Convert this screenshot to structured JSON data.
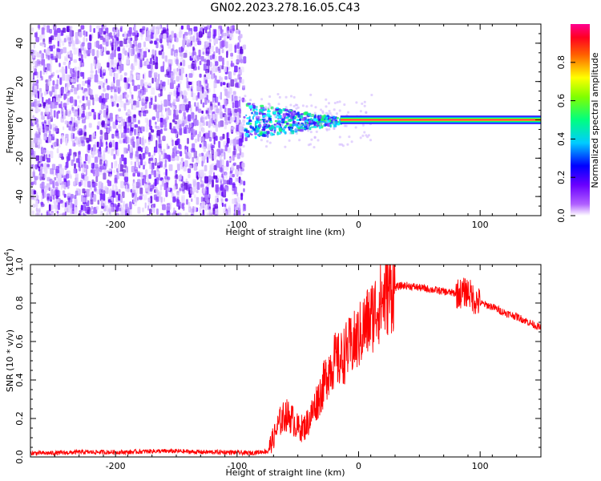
{
  "title": "GN02.2023.278.16.05.C43",
  "chart_data": [
    {
      "type": "heatmap",
      "xlabel": "Height of straight line (km)",
      "ylabel": "Frequency (Hz)",
      "xlim": [
        -270,
        150
      ],
      "ylim": [
        -50,
        50
      ],
      "x_ticks": [
        -200,
        -100,
        0,
        100
      ],
      "y_ticks": [
        -40,
        -20,
        0,
        20,
        40
      ],
      "colorbar": {
        "label": "Normalized spectral amplitude",
        "range": [
          0,
          1
        ],
        "ticks": [
          0.0,
          0.2,
          0.4,
          0.6,
          0.8
        ],
        "colormap": [
          "#ffffff",
          "#7a00ff",
          "#0000ff",
          "#00ffff",
          "#00ff00",
          "#ffff00",
          "#ff0000",
          "#ff0080"
        ]
      },
      "regions": [
        {
          "x_range": [
            -270,
            -95
          ],
          "freq_range": [
            -50,
            50
          ],
          "amplitude": [
            0.0,
            0.25
          ],
          "description_color": "#7a00ff"
        },
        {
          "x_range": [
            -95,
            -15
          ],
          "freq_range": [
            -8,
            8
          ],
          "amplitude": [
            0.2,
            0.6
          ]
        },
        {
          "x_range": [
            -15,
            150
          ],
          "freq_range": [
            -1,
            1
          ],
          "amplitude": [
            0.9,
            1.0
          ]
        }
      ]
    },
    {
      "type": "line",
      "xlabel": "Height of straight line (km)",
      "ylabel": "SNR (10 * v/v)",
      "y_multiplier": "(x10",
      "y_multiplier_exp": "4",
      "y_multiplier_close": ")",
      "xlim": [
        -270,
        150
      ],
      "ylim": [
        0.0,
        1.0
      ],
      "x_ticks": [
        -200,
        -100,
        0,
        100
      ],
      "y_ticks": [
        0.0,
        0.2,
        0.4,
        0.6,
        0.8,
        1.0
      ],
      "y_tick_labels": [
        "0.0",
        "0.2",
        "0.4",
        "0.6",
        "0.8",
        "1.0"
      ],
      "color": "#ff0000",
      "series": [
        {
          "x": [
            -270,
            -250,
            -230,
            -210,
            -190,
            -170,
            -150,
            -130,
            -110,
            -90,
            -75,
            -70,
            -65,
            -60,
            -55,
            -50,
            -45,
            -40,
            -35,
            -30,
            -25,
            -20,
            -15,
            -10,
            -5,
            0,
            5,
            10,
            15,
            20,
            25,
            30,
            35,
            40,
            50,
            60,
            70,
            80,
            85,
            90,
            95,
            100,
            110,
            120,
            130,
            140,
            150
          ],
          "y": [
            0.02,
            0.02,
            0.025,
            0.025,
            0.025,
            0.03,
            0.03,
            0.025,
            0.025,
            0.02,
            0.03,
            0.1,
            0.18,
            0.22,
            0.2,
            0.15,
            0.15,
            0.2,
            0.28,
            0.35,
            0.45,
            0.5,
            0.5,
            0.55,
            0.58,
            0.62,
            0.68,
            0.72,
            0.78,
            0.82,
            0.86,
            0.88,
            0.89,
            0.89,
            0.88,
            0.87,
            0.86,
            0.85,
            0.85,
            0.86,
            0.82,
            0.8,
            0.78,
            0.75,
            0.73,
            0.7,
            0.67
          ]
        }
      ]
    }
  ]
}
